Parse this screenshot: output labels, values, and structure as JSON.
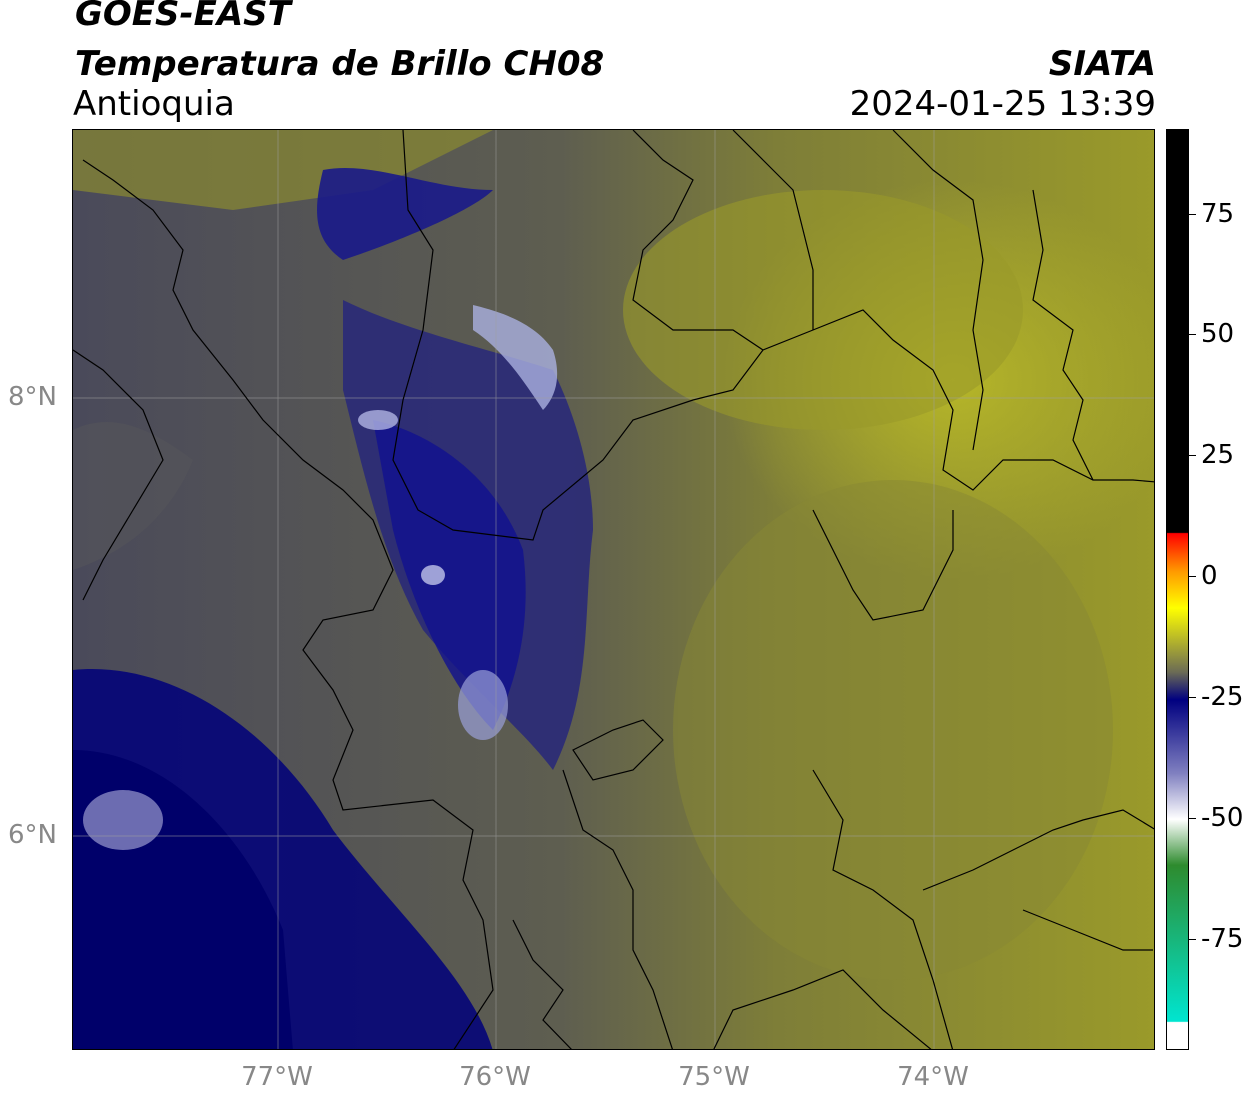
{
  "header": {
    "satellite": "GOES-EAST",
    "product": "Temperatura de Brillo CH08",
    "region": "Antioquia",
    "org": "SIATA",
    "datetime": "2024-01-25 13:39"
  },
  "map": {
    "lat_labels": [
      "8°N",
      "6°N"
    ],
    "lon_labels": [
      "77°W",
      "76°W",
      "75°W",
      "74°W"
    ],
    "lat_ticks": [
      8,
      6
    ],
    "lon_ticks": [
      -77,
      -76,
      -75,
      -74
    ],
    "extent": {
      "lon_min": -77.95,
      "lon_max": -73.0,
      "lat_min": 5.05,
      "lat_max": 9.25
    }
  },
  "colorbar": {
    "ticks": [
      "75",
      "50",
      "25",
      "0",
      "-25",
      "-50",
      "-75"
    ],
    "tick_values": [
      75,
      50,
      25,
      0,
      -25,
      -50,
      -75
    ],
    "range": [
      -95,
      90
    ],
    "colors": {
      "hot": "#000000",
      "red": "#ff0000",
      "orange": "#ff9900",
      "yellow": "#ffff00",
      "olive": "#9a9a2a",
      "gray": "#6b6b55",
      "navy": "#000080",
      "white": "#ffffff",
      "green": "#2e8b2e",
      "cyan": "#00e5d0"
    }
  }
}
